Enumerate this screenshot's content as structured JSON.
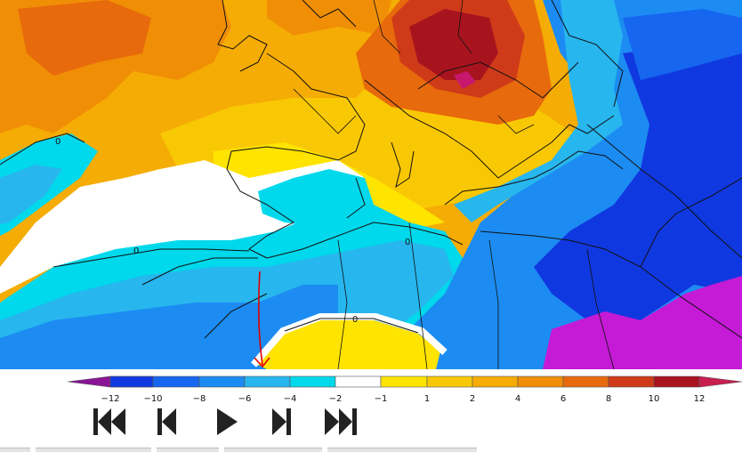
{
  "map": {
    "colors": {
      "dark_red": "#a8141e",
      "red": "#cf3b18",
      "orange_dark": "#e76a0c",
      "orange": "#f08e06",
      "amber": "#f5ac04",
      "yellow_dark": "#f9c804",
      "yellow": "#ffe400",
      "white": "#ffffff",
      "cyan": "#00d8ec",
      "sky": "#27b6ee",
      "blue": "#1c8cf2",
      "blue_dark": "#1666f0",
      "royal": "#1038e0",
      "magenta": "#c51ad6",
      "purple": "#8a1496",
      "coast": "#111111",
      "annotation": "#e00000"
    },
    "isoline_labels": [
      "0",
      "0",
      "0",
      "0"
    ]
  },
  "legend": {
    "tick_labels": [
      "−12",
      "−10",
      "−8",
      "−6",
      "−4",
      "−2",
      "−1",
      "1",
      "2",
      "4",
      "6",
      "8",
      "10",
      "12"
    ],
    "swatches": [
      "#c51ad6",
      "#1038e0",
      "#1666f0",
      "#1c8cf2",
      "#27b6ee",
      "#00d8ec",
      "#ffffff",
      "#ffe400",
      "#f9c804",
      "#f5ac04",
      "#f08e06",
      "#e76a0c",
      "#cf3b18",
      "#a8141e"
    ],
    "end_low": "#8a1496",
    "end_high": "#c81e50"
  },
  "controls": [
    {
      "name": "first-frame-button",
      "icon": "skip-back-double-icon"
    },
    {
      "name": "previous-frame-button",
      "icon": "step-back-icon"
    },
    {
      "name": "play-button",
      "icon": "play-icon"
    },
    {
      "name": "next-frame-button",
      "icon": "step-forward-icon"
    },
    {
      "name": "last-frame-button",
      "icon": "skip-forward-double-icon"
    }
  ]
}
